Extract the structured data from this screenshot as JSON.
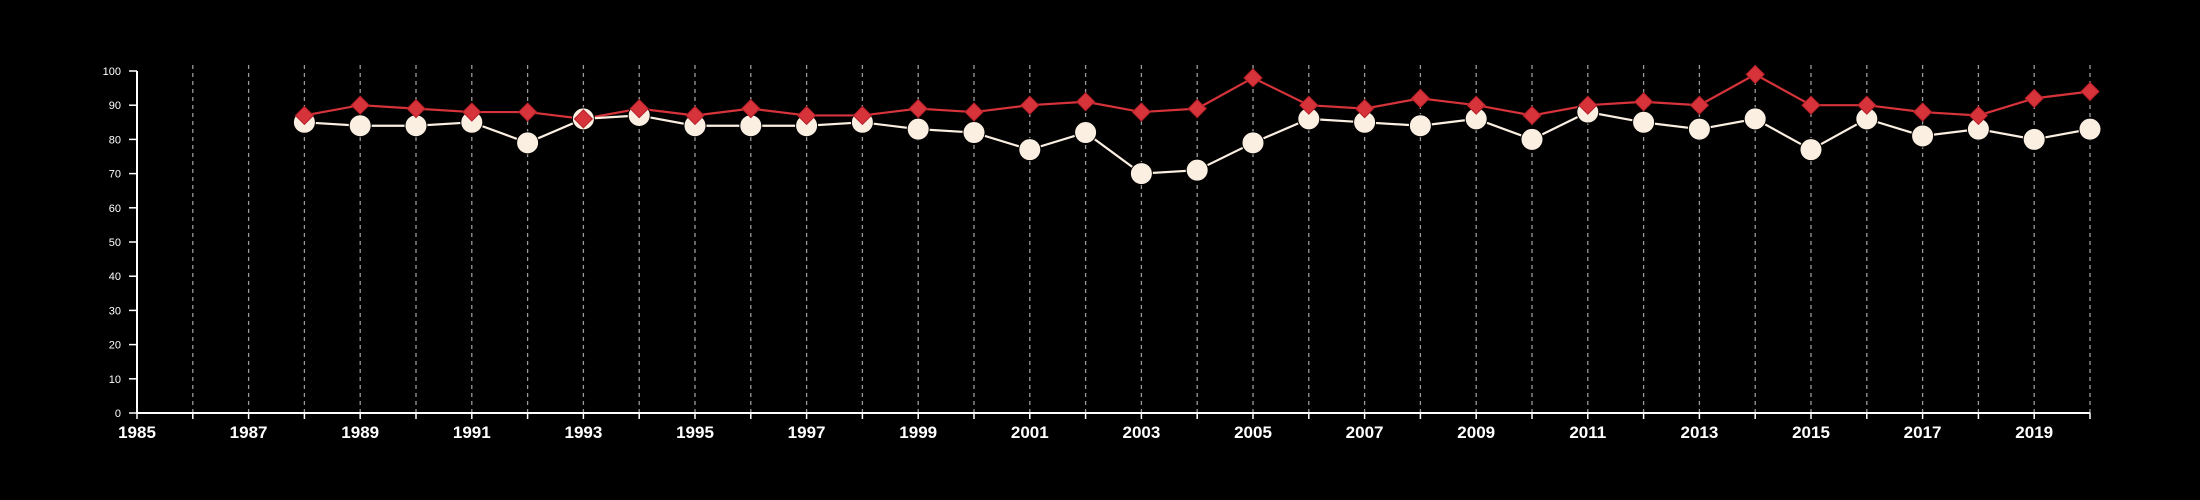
{
  "chart_data": {
    "type": "line",
    "title": "",
    "xlabel": "",
    "ylabel": "",
    "xlim": [
      1985,
      2020
    ],
    "ylim": [
      0,
      100
    ],
    "x_ticks": [
      "1985",
      "1987",
      "1989",
      "1991",
      "1993",
      "1995",
      "1997",
      "1999",
      "2001",
      "2003",
      "2005",
      "2007",
      "2009",
      "2011",
      "2013",
      "2015",
      "2017",
      "2019"
    ],
    "y_ticks": [
      "0",
      "10",
      "20",
      "30",
      "40",
      "50",
      "60",
      "70",
      "80",
      "90",
      "100"
    ],
    "grid": "vertical dashed lines at every year",
    "legend": "none",
    "background": "#000000",
    "series": [
      {
        "marker": "diamond",
        "color": "#d6333a",
        "x": [
          1988,
          1989,
          1990,
          1991,
          1992,
          1993,
          1994,
          1995,
          1996,
          1997,
          1998,
          1999,
          2000,
          2001,
          2002,
          2003,
          2004,
          2005,
          2006,
          2007,
          2008,
          2009,
          2010,
          2011,
          2012,
          2013,
          2014,
          2015,
          2016,
          2017,
          2018,
          2019,
          2020
        ],
        "values": [
          87,
          90,
          89,
          88,
          88,
          86,
          89,
          87,
          89,
          87,
          87,
          89,
          88,
          90,
          91,
          88,
          89,
          98,
          90,
          89,
          92,
          90,
          87,
          90,
          91,
          90,
          99,
          90,
          90,
          88,
          87,
          92,
          94
        ]
      },
      {
        "marker": "circle",
        "color": "#fbefe2",
        "x": [
          1988,
          1989,
          1990,
          1991,
          1992,
          1993,
          1994,
          1995,
          1996,
          1997,
          1998,
          1999,
          2000,
          2001,
          2002,
          2003,
          2004,
          2005,
          2006,
          2007,
          2008,
          2009,
          2010,
          2011,
          2012,
          2013,
          2014,
          2015,
          2016,
          2017,
          2018,
          2019,
          2020
        ],
        "values": [
          85,
          84,
          84,
          85,
          79,
          86,
          87,
          84,
          84,
          84,
          85,
          83,
          82,
          77,
          82,
          70,
          71,
          79,
          86,
          85,
          84,
          86,
          80,
          88,
          85,
          83,
          86,
          77,
          86,
          81,
          83,
          80,
          83
        ]
      }
    ]
  }
}
